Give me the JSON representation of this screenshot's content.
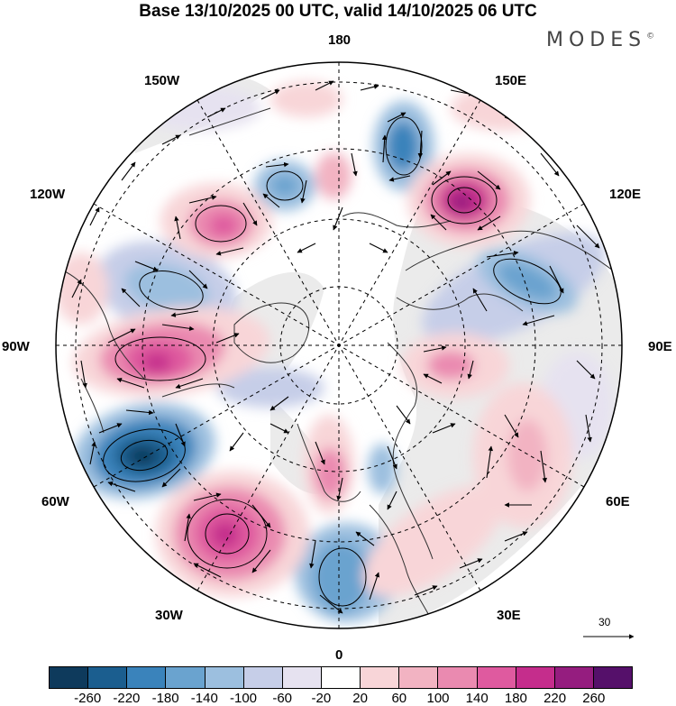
{
  "title": "Base 13/10/2025 00 UTC, valid 14/10/2025 06 UTC",
  "brand": {
    "name": "MODES",
    "mark": "©"
  },
  "longitude_labels": {
    "north": "180",
    "south": "0",
    "west": "90W",
    "east": "90E",
    "w150": "150W",
    "e150": "150E",
    "w120": "120W",
    "e120": "120E",
    "w60": "60W",
    "e60": "60E",
    "w30": "30W",
    "e30": "30E"
  },
  "vector_scale": {
    "label": "30"
  },
  "colorbar": {
    "colors": [
      "#0e3a5c",
      "#1b5e8f",
      "#3a83bb",
      "#6aa3cf",
      "#9cbfdf",
      "#c6cee8",
      "#e6e2f0",
      "#ffffff",
      "#f8d5d8",
      "#f2b3c2",
      "#ea8ab0",
      "#df5a9f",
      "#c52d8c",
      "#951d7f",
      "#55106a"
    ],
    "ticks": [
      "-260",
      "-220",
      "-180",
      "-140",
      "-100",
      "-60",
      "-20",
      "20",
      "60",
      "100",
      "140",
      "180",
      "220",
      "260"
    ]
  },
  "anomaly_centers": [
    {
      "sign": "negative",
      "value": -260,
      "near": "60W"
    },
    {
      "sign": "negative",
      "value": -140,
      "near": "180"
    },
    {
      "sign": "negative",
      "value": -120,
      "near": "150W"
    },
    {
      "sign": "negative",
      "value": -120,
      "near": "90E"
    },
    {
      "sign": "negative",
      "value": -100,
      "near": "0"
    },
    {
      "sign": "negative",
      "value": -100,
      "near": "120W"
    },
    {
      "sign": "positive",
      "value": 220,
      "near": "150E"
    },
    {
      "sign": "positive",
      "value": 200,
      "near": "30W"
    },
    {
      "sign": "positive",
      "value": 180,
      "near": "90W"
    },
    {
      "sign": "positive",
      "value": 120,
      "near": "120W"
    },
    {
      "sign": "positive",
      "value": 100,
      "near": "0"
    },
    {
      "sign": "positive",
      "value": 80,
      "near": "90E"
    },
    {
      "sign": "positive",
      "value": 60,
      "near": "60E"
    }
  ]
}
